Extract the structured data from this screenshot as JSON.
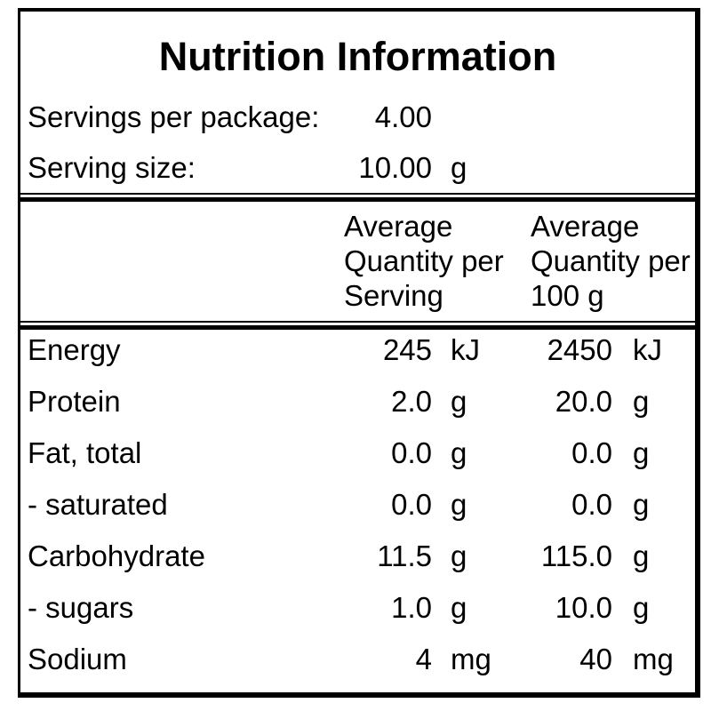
{
  "title": "Nutrition Information",
  "serving_info": {
    "rows": [
      {
        "label": "Servings per package:",
        "value": "4.00",
        "unit": ""
      },
      {
        "label": "Serving size:",
        "value": "10.00",
        "unit": "g"
      }
    ]
  },
  "table": {
    "column_headers": {
      "per_serving": {
        "line1": "Average",
        "line2": "Quantity per",
        "line3": "Serving"
      },
      "per_100g": {
        "line1": "Average",
        "line2": "Quantity per",
        "line3": "100 g"
      }
    },
    "rows": [
      {
        "nutrient": "Energy",
        "per_serving": "245",
        "per_serving_unit": "kJ",
        "per_100g": "2450",
        "per_100g_unit": "kJ"
      },
      {
        "nutrient": "Protein",
        "per_serving": "2.0",
        "per_serving_unit": "g",
        "per_100g": "20.0",
        "per_100g_unit": "g"
      },
      {
        "nutrient": "Fat, total",
        "per_serving": "0.0",
        "per_serving_unit": "g",
        "per_100g": "0.0",
        "per_100g_unit": "g"
      },
      {
        "nutrient": "- saturated",
        "per_serving": "0.0",
        "per_serving_unit": "g",
        "per_100g": "0.0",
        "per_100g_unit": "g"
      },
      {
        "nutrient": "Carbohydrate",
        "per_serving": "11.5",
        "per_serving_unit": "g",
        "per_100g": "115.0",
        "per_100g_unit": "g"
      },
      {
        "nutrient": "- sugars",
        "per_serving": "1.0",
        "per_serving_unit": "g",
        "per_100g": "10.0",
        "per_100g_unit": "g"
      },
      {
        "nutrient": "Sodium",
        "per_serving": "4",
        "per_serving_unit": "mg",
        "per_100g": "40",
        "per_100g_unit": "mg"
      }
    ]
  },
  "colors": {
    "text": "#000000",
    "border": "#000000",
    "background": "#ffffff"
  }
}
